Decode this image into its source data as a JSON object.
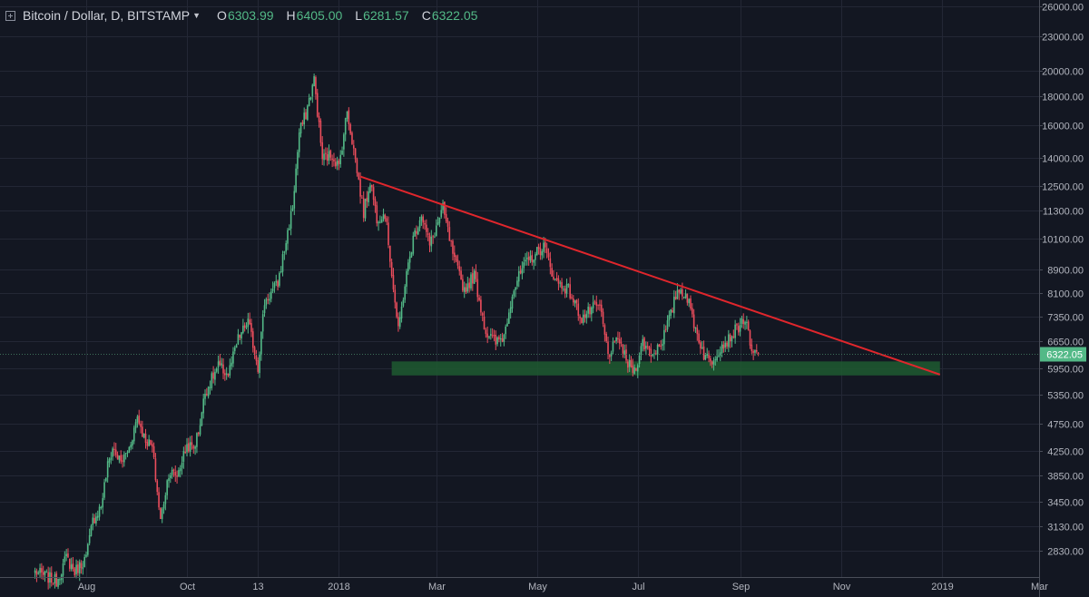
{
  "header": {
    "symbol": "Bitcoin / Dollar, D, BITSTAMP",
    "caret_icon": "caret-down",
    "expand_icon": "plus-square",
    "ohlc": [
      {
        "key": "O",
        "value": "6303.99"
      },
      {
        "key": "H",
        "value": "6405.00"
      },
      {
        "key": "L",
        "value": "6281.57"
      },
      {
        "key": "C",
        "value": "6322.05"
      }
    ]
  },
  "chart_data": {
    "type": "candlestick",
    "title": "Bitcoin / Dollar, D, BITSTAMP",
    "y_scale": "log",
    "ylim": [
      2600,
      26000
    ],
    "grid": true,
    "last_price": 6322.05,
    "last_price_label": "6322.05",
    "y_ticks": [
      "2830.00",
      "3130.00",
      "3450.00",
      "3850.00",
      "4250.00",
      "4750.00",
      "5350.00",
      "5950.00",
      "6650.00",
      "7350.00",
      "8100.00",
      "8900.00",
      "10100.00",
      "11300.00",
      "12500.00",
      "14000.00",
      "16000.00",
      "18000.00",
      "20000.00",
      "23000.00",
      "26000.00"
    ],
    "x_ticks": [
      "Aug",
      "Oct",
      "13",
      "2018",
      "Mar",
      "May",
      "Jul",
      "Sep",
      "Nov",
      "2019",
      "Mar"
    ],
    "x_tick_dates": [
      "2017-08-01",
      "2017-10-01",
      "2017-11-13",
      "2018-01-01",
      "2018-03-01",
      "2018-05-01",
      "2018-07-01",
      "2018-09-01",
      "2018-11-01",
      "2019-01-01",
      "2019-03-01"
    ],
    "colors": {
      "up": "#53b987",
      "down": "#eb4d5c",
      "trendline": "#e0262c",
      "support_zone": "#1e5b30",
      "grid": "#232735",
      "background": "#131722",
      "price_tag": "#53b987"
    },
    "price_path": [
      [
        "2017-07-01",
        2600
      ],
      [
        "2017-07-14",
        2500
      ],
      [
        "2017-07-20",
        2750
      ],
      [
        "2017-07-25",
        2600
      ],
      [
        "2017-08-01",
        2750
      ],
      [
        "2017-08-05",
        3200
      ],
      [
        "2017-08-10",
        3400
      ],
      [
        "2017-08-14",
        4000
      ],
      [
        "2017-08-17",
        4300
      ],
      [
        "2017-08-22",
        4050
      ],
      [
        "2017-08-27",
        4300
      ],
      [
        "2017-09-01",
        4900
      ],
      [
        "2017-09-05",
        4500
      ],
      [
        "2017-09-10",
        4300
      ],
      [
        "2017-09-15",
        3200
      ],
      [
        "2017-09-20",
        3900
      ],
      [
        "2017-09-25",
        3850
      ],
      [
        "2017-10-01",
        4350
      ],
      [
        "2017-10-05",
        4300
      ],
      [
        "2017-10-08",
        4600
      ],
      [
        "2017-10-12",
        5400
      ],
      [
        "2017-10-20",
        6000
      ],
      [
        "2017-10-26",
        5800
      ],
      [
        "2017-11-01",
        6700
      ],
      [
        "2017-11-07",
        7200
      ],
      [
        "2017-11-13",
        6000
      ],
      [
        "2017-11-17",
        7800
      ],
      [
        "2017-11-25",
        8400
      ],
      [
        "2017-11-30",
        10000
      ],
      [
        "2017-12-04",
        11500
      ],
      [
        "2017-12-08",
        15500
      ],
      [
        "2017-12-12",
        16800
      ],
      [
        "2017-12-17",
        19300
      ],
      [
        "2017-12-22",
        14000
      ],
      [
        "2017-12-28",
        14200
      ],
      [
        "2018-01-01",
        13500
      ],
      [
        "2018-01-06",
        17000
      ],
      [
        "2018-01-10",
        14500
      ],
      [
        "2018-01-16",
        11200
      ],
      [
        "2018-01-20",
        12800
      ],
      [
        "2018-01-24",
        11000
      ],
      [
        "2018-01-29",
        11200
      ],
      [
        "2018-02-02",
        8800
      ],
      [
        "2018-02-06",
        6900
      ],
      [
        "2018-02-10",
        8400
      ],
      [
        "2018-02-15",
        10100
      ],
      [
        "2018-02-20",
        11200
      ],
      [
        "2018-02-25",
        9800
      ],
      [
        "2018-03-05",
        11400
      ],
      [
        "2018-03-12",
        9200
      ],
      [
        "2018-03-18",
        8200
      ],
      [
        "2018-03-24",
        8700
      ],
      [
        "2018-03-31",
        6900
      ],
      [
        "2018-04-06",
        6600
      ],
      [
        "2018-04-11",
        6800
      ],
      [
        "2018-04-16",
        8100
      ],
      [
        "2018-04-22",
        8900
      ],
      [
        "2018-04-27",
        9300
      ],
      [
        "2018-05-05",
        9800
      ],
      [
        "2018-05-12",
        8500
      ],
      [
        "2018-05-20",
        8200
      ],
      [
        "2018-05-28",
        7300
      ],
      [
        "2018-06-04",
        7600
      ],
      [
        "2018-06-08",
        7650
      ],
      [
        "2018-06-13",
        6300
      ],
      [
        "2018-06-20",
        6700
      ],
      [
        "2018-06-24",
        6100
      ],
      [
        "2018-06-29",
        5900
      ],
      [
        "2018-07-04",
        6600
      ],
      [
        "2018-07-10",
        6300
      ],
      [
        "2018-07-16",
        6700
      ],
      [
        "2018-07-21",
        7400
      ],
      [
        "2018-07-25",
        8200
      ],
      [
        "2018-07-30",
        8100
      ],
      [
        "2018-08-05",
        7000
      ],
      [
        "2018-08-10",
        6300
      ],
      [
        "2018-08-14",
        6100
      ],
      [
        "2018-08-20",
        6500
      ],
      [
        "2018-08-25",
        6700
      ],
      [
        "2018-08-30",
        7000
      ],
      [
        "2018-09-04",
        7300
      ],
      [
        "2018-09-08",
        6300
      ],
      [
        "2018-09-12",
        6320
      ]
    ],
    "trendline": {
      "from": [
        "2018-01-14",
        13000
      ],
      "to": [
        "2018-12-31",
        5800
      ]
    },
    "support_zone": {
      "from_date": "2018-02-02",
      "to_date": "2018-12-31",
      "low": 5780,
      "high": 6120
    }
  }
}
